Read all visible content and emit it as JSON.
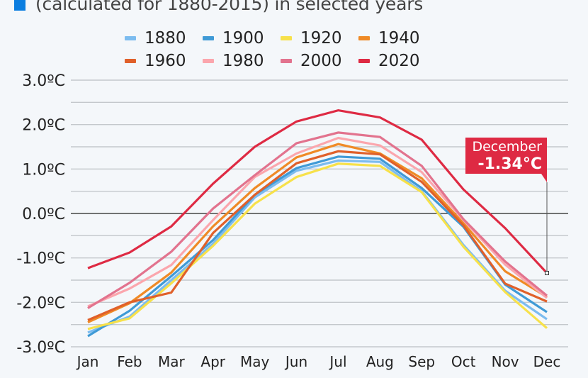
{
  "subtitle": "(calculated for 1880-2015) in selected years",
  "subtitle_marker_color": "#0b7ee0",
  "chart_data": {
    "type": "line",
    "title": "",
    "subtitle": "(calculated for 1880-2015) in selected years",
    "xlabel": "",
    "ylabel": "",
    "categories": [
      "Jan",
      "Feb",
      "Mar",
      "Apr",
      "May",
      "Jun",
      "Jul",
      "Aug",
      "Sep",
      "Oct",
      "Nov",
      "Dec"
    ],
    "ylim": [
      -3.0,
      3.0
    ],
    "yticks": [
      {
        "value": 3.0,
        "label": "3.0ºC"
      },
      {
        "value": 2.0,
        "label": "2.0ºC"
      },
      {
        "value": 1.0,
        "label": "1.0ºC"
      },
      {
        "value": 0.0,
        "label": "0.0ºC"
      },
      {
        "value": -1.0,
        "label": "-1.0ºC"
      },
      {
        "value": -2.0,
        "label": "-2.0ºC"
      },
      {
        "value": -3.0,
        "label": "-3.0ºC"
      }
    ],
    "minor_gridlines": [
      2.5,
      1.5,
      0.5,
      -0.5,
      -1.5,
      -2.5
    ],
    "grid": true,
    "legend_position": "top",
    "series": [
      {
        "name": "1880",
        "color": "#7cbcef",
        "values": [
          -2.68,
          -2.32,
          -1.5,
          -0.68,
          0.36,
          0.96,
          1.19,
          1.16,
          0.5,
          -0.71,
          -1.74,
          -2.38
        ]
      },
      {
        "name": "1900",
        "color": "#3f9ad6",
        "values": [
          -2.76,
          -2.19,
          -1.41,
          -0.6,
          0.42,
          1.02,
          1.28,
          1.23,
          0.57,
          -0.3,
          -1.6,
          -2.22
        ]
      },
      {
        "name": "1920",
        "color": "#f7e14a",
        "values": [
          -2.6,
          -2.36,
          -1.57,
          -0.73,
          0.22,
          0.82,
          1.12,
          1.07,
          0.48,
          -0.75,
          -1.77,
          -2.58
        ]
      },
      {
        "name": "1940",
        "color": "#ef8a26",
        "values": [
          -2.45,
          -2.02,
          -1.33,
          -0.29,
          0.57,
          1.26,
          1.56,
          1.35,
          0.79,
          -0.22,
          -1.3,
          -1.88
        ]
      },
      {
        "name": "1960",
        "color": "#e0602a",
        "values": [
          -2.4,
          -2.0,
          -1.78,
          -0.44,
          0.42,
          1.13,
          1.4,
          1.33,
          0.71,
          -0.27,
          -1.58,
          -1.98
        ]
      },
      {
        "name": "1980",
        "color": "#fba6ad",
        "values": [
          -2.09,
          -1.69,
          -1.16,
          -0.15,
          0.82,
          1.35,
          1.7,
          1.53,
          0.93,
          -0.15,
          -1.15,
          -1.9
        ]
      },
      {
        "name": "2000",
        "color": "#e2738e",
        "values": [
          -2.13,
          -1.56,
          -0.86,
          0.11,
          0.86,
          1.58,
          1.82,
          1.72,
          1.07,
          -0.13,
          -1.08,
          -1.85
        ]
      },
      {
        "name": "2020",
        "color": "#de2a43",
        "values": [
          -1.23,
          -0.88,
          -0.29,
          0.67,
          1.5,
          2.07,
          2.32,
          2.16,
          1.66,
          0.54,
          -0.33,
          -1.34
        ]
      }
    ],
    "annotation": {
      "series": "2020",
      "category": "Dec",
      "title": "December",
      "value_label": "-1.34°C",
      "color": "#de2a43"
    }
  }
}
